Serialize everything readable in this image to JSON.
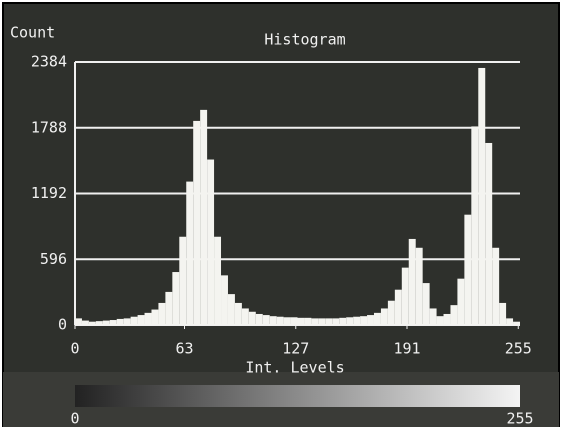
{
  "chart_data": {
    "type": "histogram",
    "title": "Histogram",
    "y_label": "Count",
    "x_label": "Int. Levels",
    "bins": [
      0,
      4,
      8,
      12,
      16,
      20,
      24,
      28,
      32,
      36,
      40,
      44,
      48,
      52,
      56,
      60,
      64,
      68,
      72,
      76,
      80,
      84,
      88,
      92,
      96,
      100,
      104,
      108,
      112,
      116,
      120,
      124,
      128,
      132,
      136,
      140,
      144,
      148,
      152,
      156,
      160,
      164,
      168,
      172,
      176,
      180,
      184,
      188,
      192,
      196,
      200,
      204,
      208,
      212,
      216,
      220,
      224,
      228,
      232,
      236,
      240,
      244,
      248,
      252,
      256
    ],
    "counts": [
      60,
      40,
      30,
      35,
      40,
      45,
      55,
      60,
      75,
      90,
      110,
      140,
      200,
      300,
      480,
      800,
      1300,
      1850,
      1950,
      1500,
      800,
      450,
      280,
      200,
      150,
      120,
      100,
      90,
      80,
      75,
      70,
      70,
      65,
      65,
      60,
      60,
      60,
      60,
      65,
      70,
      75,
      80,
      90,
      110,
      150,
      220,
      320,
      520,
      780,
      700,
      380,
      150,
      80,
      100,
      180,
      420,
      1000,
      1800,
      2330,
      1650,
      700,
      200,
      60,
      30
    ],
    "color": "#f4f4f0",
    "xlim": [
      0,
      256
    ],
    "xticks": [
      0,
      63,
      127,
      191,
      255
    ],
    "ylim": [
      0,
      2384
    ],
    "yticks": [
      0,
      596,
      1192,
      1788,
      2384
    ],
    "grid": true,
    "gradient_bar_ticks": [
      0,
      255
    ]
  }
}
